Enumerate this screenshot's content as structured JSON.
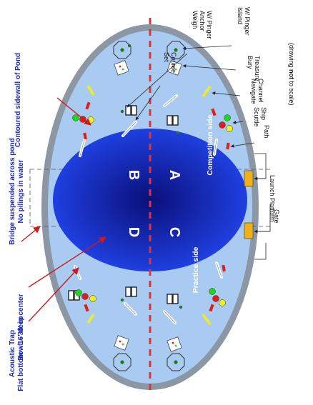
{
  "diagram": {
    "quadrants": {
      "a": "A",
      "b": "B",
      "c": "C",
      "d": "D"
    },
    "side_labels": {
      "competition": "Competition side",
      "practice": "Practice side"
    },
    "right_labels": {
      "weigh_anchor": [
        "Weigh",
        "Anchor",
        "W/ Pinger"
      ],
      "island": [
        "Island",
        "W/ Pinger"
      ],
      "set_course": [
        "Set",
        "Course"
      ],
      "bury_treasure": [
        "Bury",
        "Treasure"
      ],
      "navigate_channel": [
        "Navigate",
        "Channel"
      ],
      "scuttle_ship": [
        "Scuttle",
        "Ship"
      ],
      "path": "Path",
      "launch_platform": "Launch Platform",
      "gate": "Gate",
      "not_to_scale": [
        "(drawing ",
        "not",
        " to scale)"
      ]
    },
    "left_labels": {
      "contoured_sidewall": "Contoured sidewall of Pond",
      "bridge": [
        "Bridge suspended across pond",
        "No pilings in water"
      ],
      "bowl": "Bowl – 38' in center",
      "acoustic_trap": [
        "Acoustic Trap",
        "Flat bottom – 16' deep"
      ]
    },
    "colors": {
      "pond_fill": "#a9cbf1",
      "pond_rim": "#8c97a6",
      "bowl_center": "#0a0f7a",
      "bowl_edge": "#1f3fe0",
      "label_blue": "#1b28c8",
      "arrow_red": "#d01818",
      "divider_red": "#e03434",
      "platform_orange": "#f0b018",
      "buoy_red": "#e01c1c",
      "buoy_green": "#1cd81c",
      "buoy_yellow": "#f0f020",
      "channel_yellow": "#f0ec20"
    }
  }
}
